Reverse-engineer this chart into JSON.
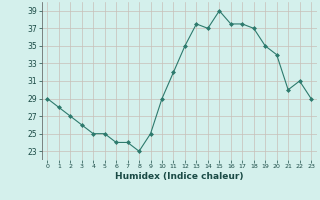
{
  "x": [
    0,
    1,
    2,
    3,
    4,
    5,
    6,
    7,
    8,
    9,
    10,
    11,
    12,
    13,
    14,
    15,
    16,
    17,
    18,
    19,
    20,
    21,
    22,
    23
  ],
  "y": [
    29,
    28,
    27,
    26,
    25,
    25,
    24,
    24,
    23,
    25,
    29,
    32,
    35,
    37.5,
    37,
    39,
    37.5,
    37.5,
    37,
    35,
    34,
    30,
    31,
    29
  ],
  "xlabel": "Humidex (Indice chaleur)",
  "xlim": [
    -0.5,
    23.5
  ],
  "ylim": [
    22,
    40
  ],
  "yticks": [
    23,
    25,
    27,
    29,
    31,
    33,
    35,
    37,
    39
  ],
  "xticks": [
    0,
    1,
    2,
    3,
    4,
    5,
    6,
    7,
    8,
    9,
    10,
    11,
    12,
    13,
    14,
    15,
    16,
    17,
    18,
    19,
    20,
    21,
    22,
    23
  ],
  "line_color": "#2d7a6d",
  "bg_color": "#d4f0ec",
  "grid_color": "#c8bfb8"
}
